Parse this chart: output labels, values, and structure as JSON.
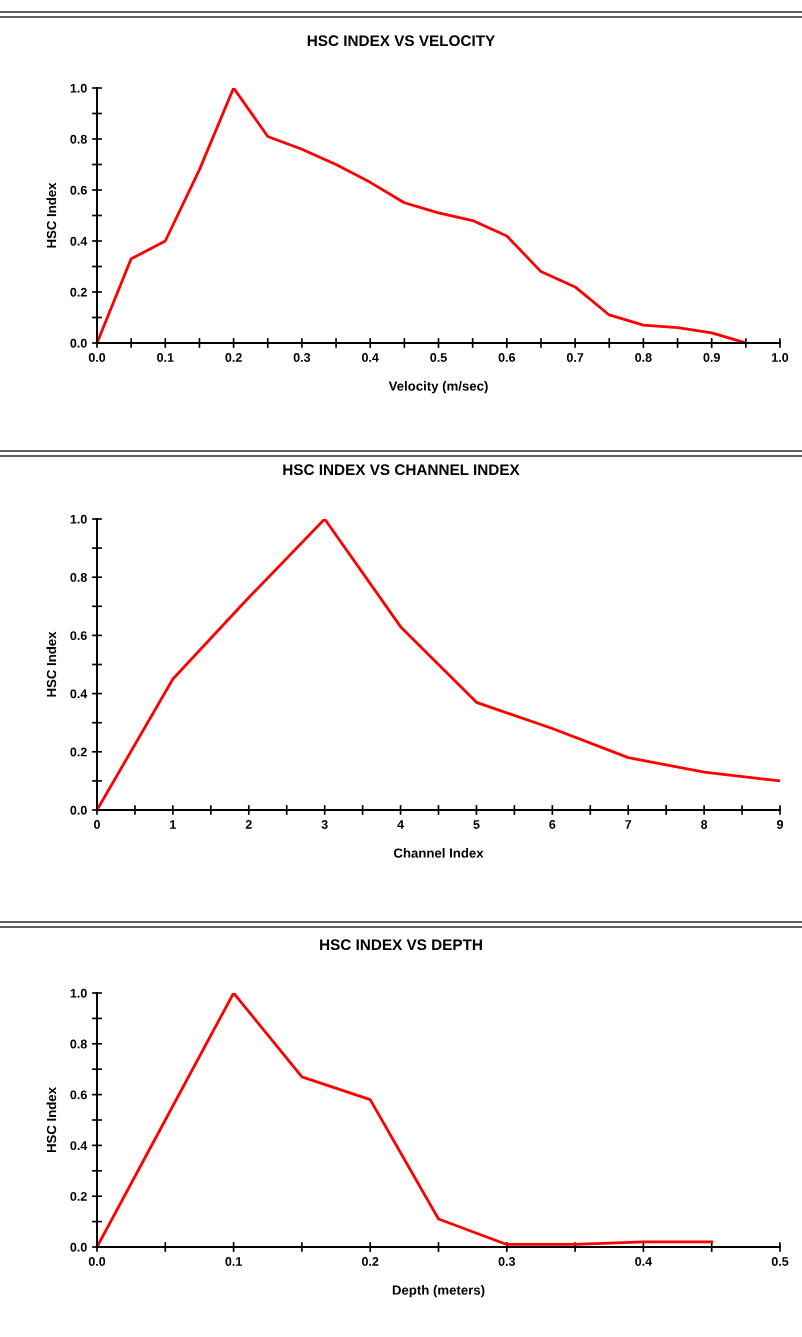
{
  "chart_data": [
    {
      "type": "line",
      "title": "HSC INDEX VS VELOCITY",
      "xlabel": "Velocity (m/sec)",
      "ylabel": "HSC Index",
      "x": [
        0,
        0.05,
        0.1,
        0.15,
        0.2,
        0.25,
        0.3,
        0.35,
        0.4,
        0.45,
        0.5,
        0.55,
        0.6,
        0.65,
        0.7,
        0.75,
        0.8,
        0.85,
        0.9,
        0.95
      ],
      "series": [
        {
          "color": "#ff0000",
          "values": [
            0,
            0.33,
            0.4,
            0.68,
            1.0,
            0.81,
            0.76,
            0.7,
            0.63,
            0.55,
            0.51,
            0.48,
            0.42,
            0.28,
            0.22,
            0.11,
            0.07,
            0.06,
            0.04,
            0.0
          ]
        }
      ],
      "xlim": [
        0,
        1
      ],
      "ylim": [
        0,
        1
      ],
      "xticks": [
        {
          "value": 0,
          "label": "0.0"
        },
        {
          "value": 0.05,
          "label": null
        },
        0.1,
        {
          "value": 0.15,
          "label": null
        },
        0.2,
        {
          "value": 0.25,
          "label": null
        },
        0.3,
        {
          "value": 0.35,
          "label": null
        },
        0.4,
        {
          "value": 0.45,
          "label": null
        },
        0.5,
        {
          "value": 0.55,
          "label": null
        },
        0.6,
        {
          "value": 0.65,
          "label": null
        },
        0.7,
        {
          "value": 0.75,
          "label": null
        },
        0.8,
        {
          "value": 0.85,
          "label": null
        },
        0.9,
        {
          "value": 0.95,
          "label": null
        },
        {
          "value": 1,
          "label": "1.0"
        }
      ],
      "yticks": [
        {
          "value": 0,
          "label": "0.0"
        },
        {
          "value": 0.1,
          "label": null
        },
        0.2,
        {
          "value": 0.3,
          "label": null
        },
        0.4,
        {
          "value": 0.5,
          "label": null
        },
        0.6,
        {
          "value": 0.7,
          "label": null
        },
        0.8,
        {
          "value": 0.9,
          "label": null
        },
        {
          "value": 1,
          "label": "1.0"
        }
      ],
      "grid": false,
      "marker": "none",
      "line_style": "solid"
    },
    {
      "type": "line",
      "title": "HSC INDEX VS CHANNEL INDEX",
      "xlabel": "Channel Index",
      "ylabel": "HSC Index",
      "x": [
        0,
        1,
        2,
        3,
        4,
        5,
        6,
        7,
        8,
        9
      ],
      "series": [
        {
          "color": "#ff0000",
          "values": [
            0,
            0.45,
            0.73,
            1.0,
            0.63,
            0.37,
            0.28,
            0.18,
            0.13,
            0.1
          ]
        }
      ],
      "xlim": [
        0,
        9
      ],
      "ylim": [
        0,
        1
      ],
      "xticks": [
        0,
        {
          "value": 0.5,
          "label": null
        },
        1,
        {
          "value": 1.5,
          "label": null
        },
        2,
        {
          "value": 2.5,
          "label": null
        },
        3,
        {
          "value": 3.5,
          "label": null
        },
        4,
        {
          "value": 4.5,
          "label": null
        },
        5,
        {
          "value": 5.5,
          "label": null
        },
        6,
        {
          "value": 6.5,
          "label": null
        },
        7,
        {
          "value": 7.5,
          "label": null
        },
        8,
        {
          "value": 8.5,
          "label": null
        },
        9
      ],
      "yticks": [
        {
          "value": 0,
          "label": "0.0"
        },
        {
          "value": 0.1,
          "label": null
        },
        0.2,
        {
          "value": 0.3,
          "label": null
        },
        0.4,
        {
          "value": 0.5,
          "label": null
        },
        0.6,
        {
          "value": 0.7,
          "label": null
        },
        0.8,
        {
          "value": 0.9,
          "label": null
        },
        {
          "value": 1,
          "label": "1.0"
        }
      ],
      "grid": false,
      "marker": "none",
      "line_style": "solid"
    },
    {
      "type": "line",
      "title": "HSC INDEX VS DEPTH",
      "xlabel": "Depth (meters)",
      "ylabel": "HSC Index",
      "x": [
        0,
        0.05,
        0.1,
        0.15,
        0.2,
        0.25,
        0.3,
        0.35,
        0.4,
        0.45
      ],
      "series": [
        {
          "color": "#ff0000",
          "values": [
            0,
            0.5,
            1.0,
            0.67,
            0.58,
            0.11,
            0.01,
            0.01,
            0.02,
            0.02
          ]
        }
      ],
      "xlim": [
        0,
        0.5
      ],
      "ylim": [
        0,
        1
      ],
      "xticks": [
        {
          "value": 0,
          "label": "0.0"
        },
        {
          "value": 0.05,
          "label": null
        },
        0.1,
        {
          "value": 0.15,
          "label": null
        },
        0.2,
        {
          "value": 0.25,
          "label": null
        },
        0.3,
        {
          "value": 0.35,
          "label": null
        },
        0.4,
        {
          "value": 0.45,
          "label": null
        },
        0.5
      ],
      "yticks": [
        {
          "value": 0,
          "label": "0.0"
        },
        {
          "value": 0.1,
          "label": null
        },
        0.2,
        {
          "value": 0.3,
          "label": null
        },
        0.4,
        {
          "value": 0.5,
          "label": null
        },
        0.6,
        {
          "value": 0.7,
          "label": null
        },
        0.8,
        {
          "value": 0.9,
          "label": null
        },
        {
          "value": 1,
          "label": "1.0"
        }
      ],
      "grid": false,
      "marker": "none",
      "line_style": "solid"
    }
  ]
}
